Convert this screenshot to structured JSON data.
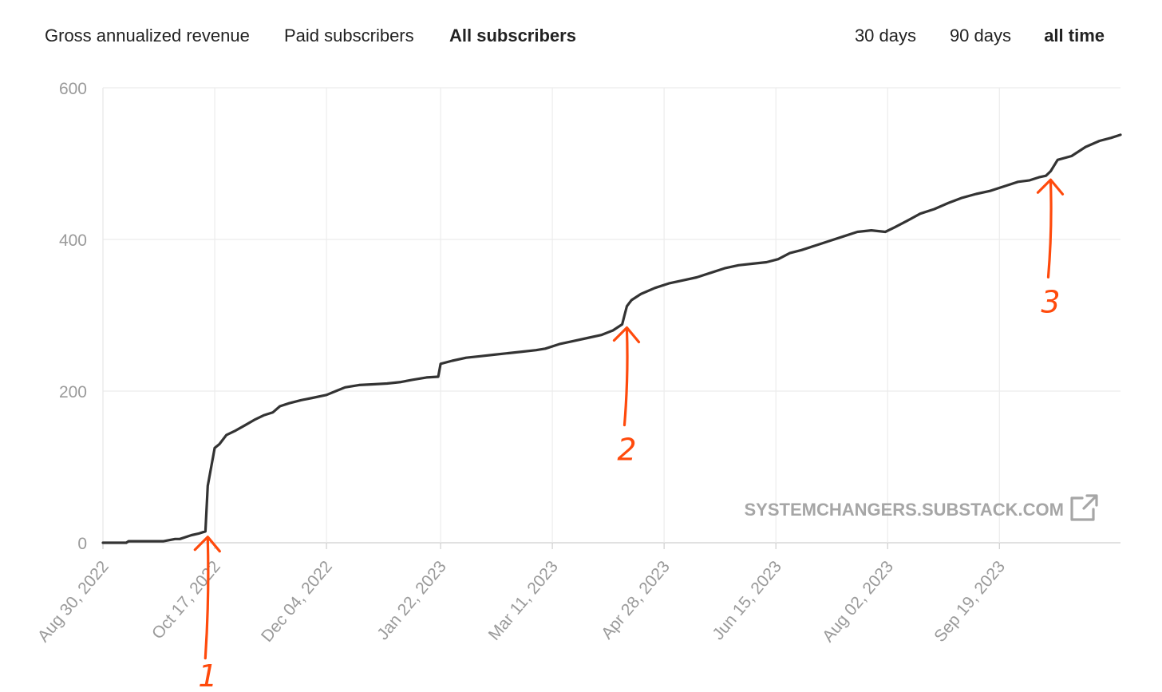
{
  "header": {
    "metric_tabs": [
      {
        "label": "Gross annualized revenue",
        "active": false
      },
      {
        "label": "Paid subscribers",
        "active": false
      },
      {
        "label": "All subscribers",
        "active": true
      }
    ],
    "range_tabs": [
      {
        "label": "30 days",
        "active": false
      },
      {
        "label": "90 days",
        "active": false
      },
      {
        "label": "all time",
        "active": true
      }
    ]
  },
  "watermark": {
    "text": "SYSTEMCHANGERS.SUBSTACK.COM",
    "icon": "external-link-icon"
  },
  "colors": {
    "line": "#333333",
    "annotation": "#ff4a0c",
    "grid": "#ececec",
    "tick": "#9a9a9a"
  },
  "chart_data": {
    "type": "line",
    "ylim": [
      0,
      600
    ],
    "yticks": [
      0,
      200,
      400,
      600
    ],
    "xlim": [
      "2022-08-30",
      "2023-11-10"
    ],
    "xticks": [
      "Aug 30, 2022",
      "Oct 17, 2022",
      "Dec 04, 2022",
      "Jan 22, 2023",
      "Mar 11, 2023",
      "Apr 28, 2023",
      "Jun 15, 2023",
      "Aug 02, 2023",
      "Sep 19, 2023"
    ],
    "grid": true,
    "series": [
      {
        "x": [
          "2022-08-30",
          "2022-09-09",
          "2022-09-10",
          "2022-09-20",
          "2022-09-25",
          "2022-09-30",
          "2022-10-02",
          "2022-10-07",
          "2022-10-10",
          "2022-10-12",
          "2022-10-13",
          "2022-10-14",
          "2022-10-17",
          "2022-10-19",
          "2022-10-22",
          "2022-10-26",
          "2022-10-30",
          "2022-11-03",
          "2022-11-07",
          "2022-11-11",
          "2022-11-14",
          "2022-11-18",
          "2022-11-23",
          "2022-11-28",
          "2022-12-04",
          "2022-12-08",
          "2022-12-12",
          "2022-12-18",
          "2022-12-24",
          "2022-12-30",
          "2023-01-05",
          "2023-01-10",
          "2023-01-16",
          "2023-01-21",
          "2023-01-22",
          "2023-01-27",
          "2023-02-02",
          "2023-02-08",
          "2023-02-14",
          "2023-02-20",
          "2023-02-26",
          "2023-03-04",
          "2023-03-08",
          "2023-03-14",
          "2023-03-20",
          "2023-03-26",
          "2023-04-01",
          "2023-04-06",
          "2023-04-10",
          "2023-04-11",
          "2023-04-12",
          "2023-04-14",
          "2023-04-18",
          "2023-04-24",
          "2023-04-30",
          "2023-05-06",
          "2023-05-12",
          "2023-05-18",
          "2023-05-24",
          "2023-05-30",
          "2023-06-05",
          "2023-06-11",
          "2023-06-16",
          "2023-06-21",
          "2023-06-26",
          "2023-07-02",
          "2023-07-08",
          "2023-07-14",
          "2023-07-20",
          "2023-07-26",
          "2023-08-01",
          "2023-08-05",
          "2023-08-10",
          "2023-08-16",
          "2023-08-22",
          "2023-08-28",
          "2023-09-03",
          "2023-09-09",
          "2023-09-15",
          "2023-09-21",
          "2023-09-27",
          "2023-10-02",
          "2023-10-04",
          "2023-10-06",
          "2023-10-09",
          "2023-10-11",
          "2023-10-14",
          "2023-10-20",
          "2023-10-26",
          "2023-11-01",
          "2023-11-06",
          "2023-11-10"
        ],
        "values": [
          0,
          0,
          2,
          2,
          2,
          5,
          5,
          10,
          12,
          14,
          15,
          75,
          125,
          130,
          142,
          148,
          155,
          162,
          168,
          172,
          180,
          184,
          188,
          191,
          195,
          200,
          205,
          208,
          209,
          210,
          212,
          215,
          218,
          219,
          236,
          240,
          244,
          246,
          248,
          250,
          252,
          254,
          256,
          262,
          266,
          270,
          274,
          280,
          288,
          300,
          312,
          320,
          328,
          336,
          342,
          346,
          350,
          356,
          362,
          366,
          368,
          370,
          374,
          382,
          386,
          392,
          398,
          404,
          410,
          412,
          410,
          416,
          424,
          434,
          440,
          448,
          455,
          460,
          464,
          470,
          476,
          478,
          480,
          482,
          484,
          490,
          505,
          510,
          522,
          530,
          534,
          538
        ]
      }
    ],
    "annotations": [
      {
        "label": "1",
        "x": "2022-10-14",
        "y": 14
      },
      {
        "label": "2",
        "x": "2023-04-12",
        "y": 290
      },
      {
        "label": "3",
        "x": "2023-10-11",
        "y": 485
      }
    ]
  }
}
